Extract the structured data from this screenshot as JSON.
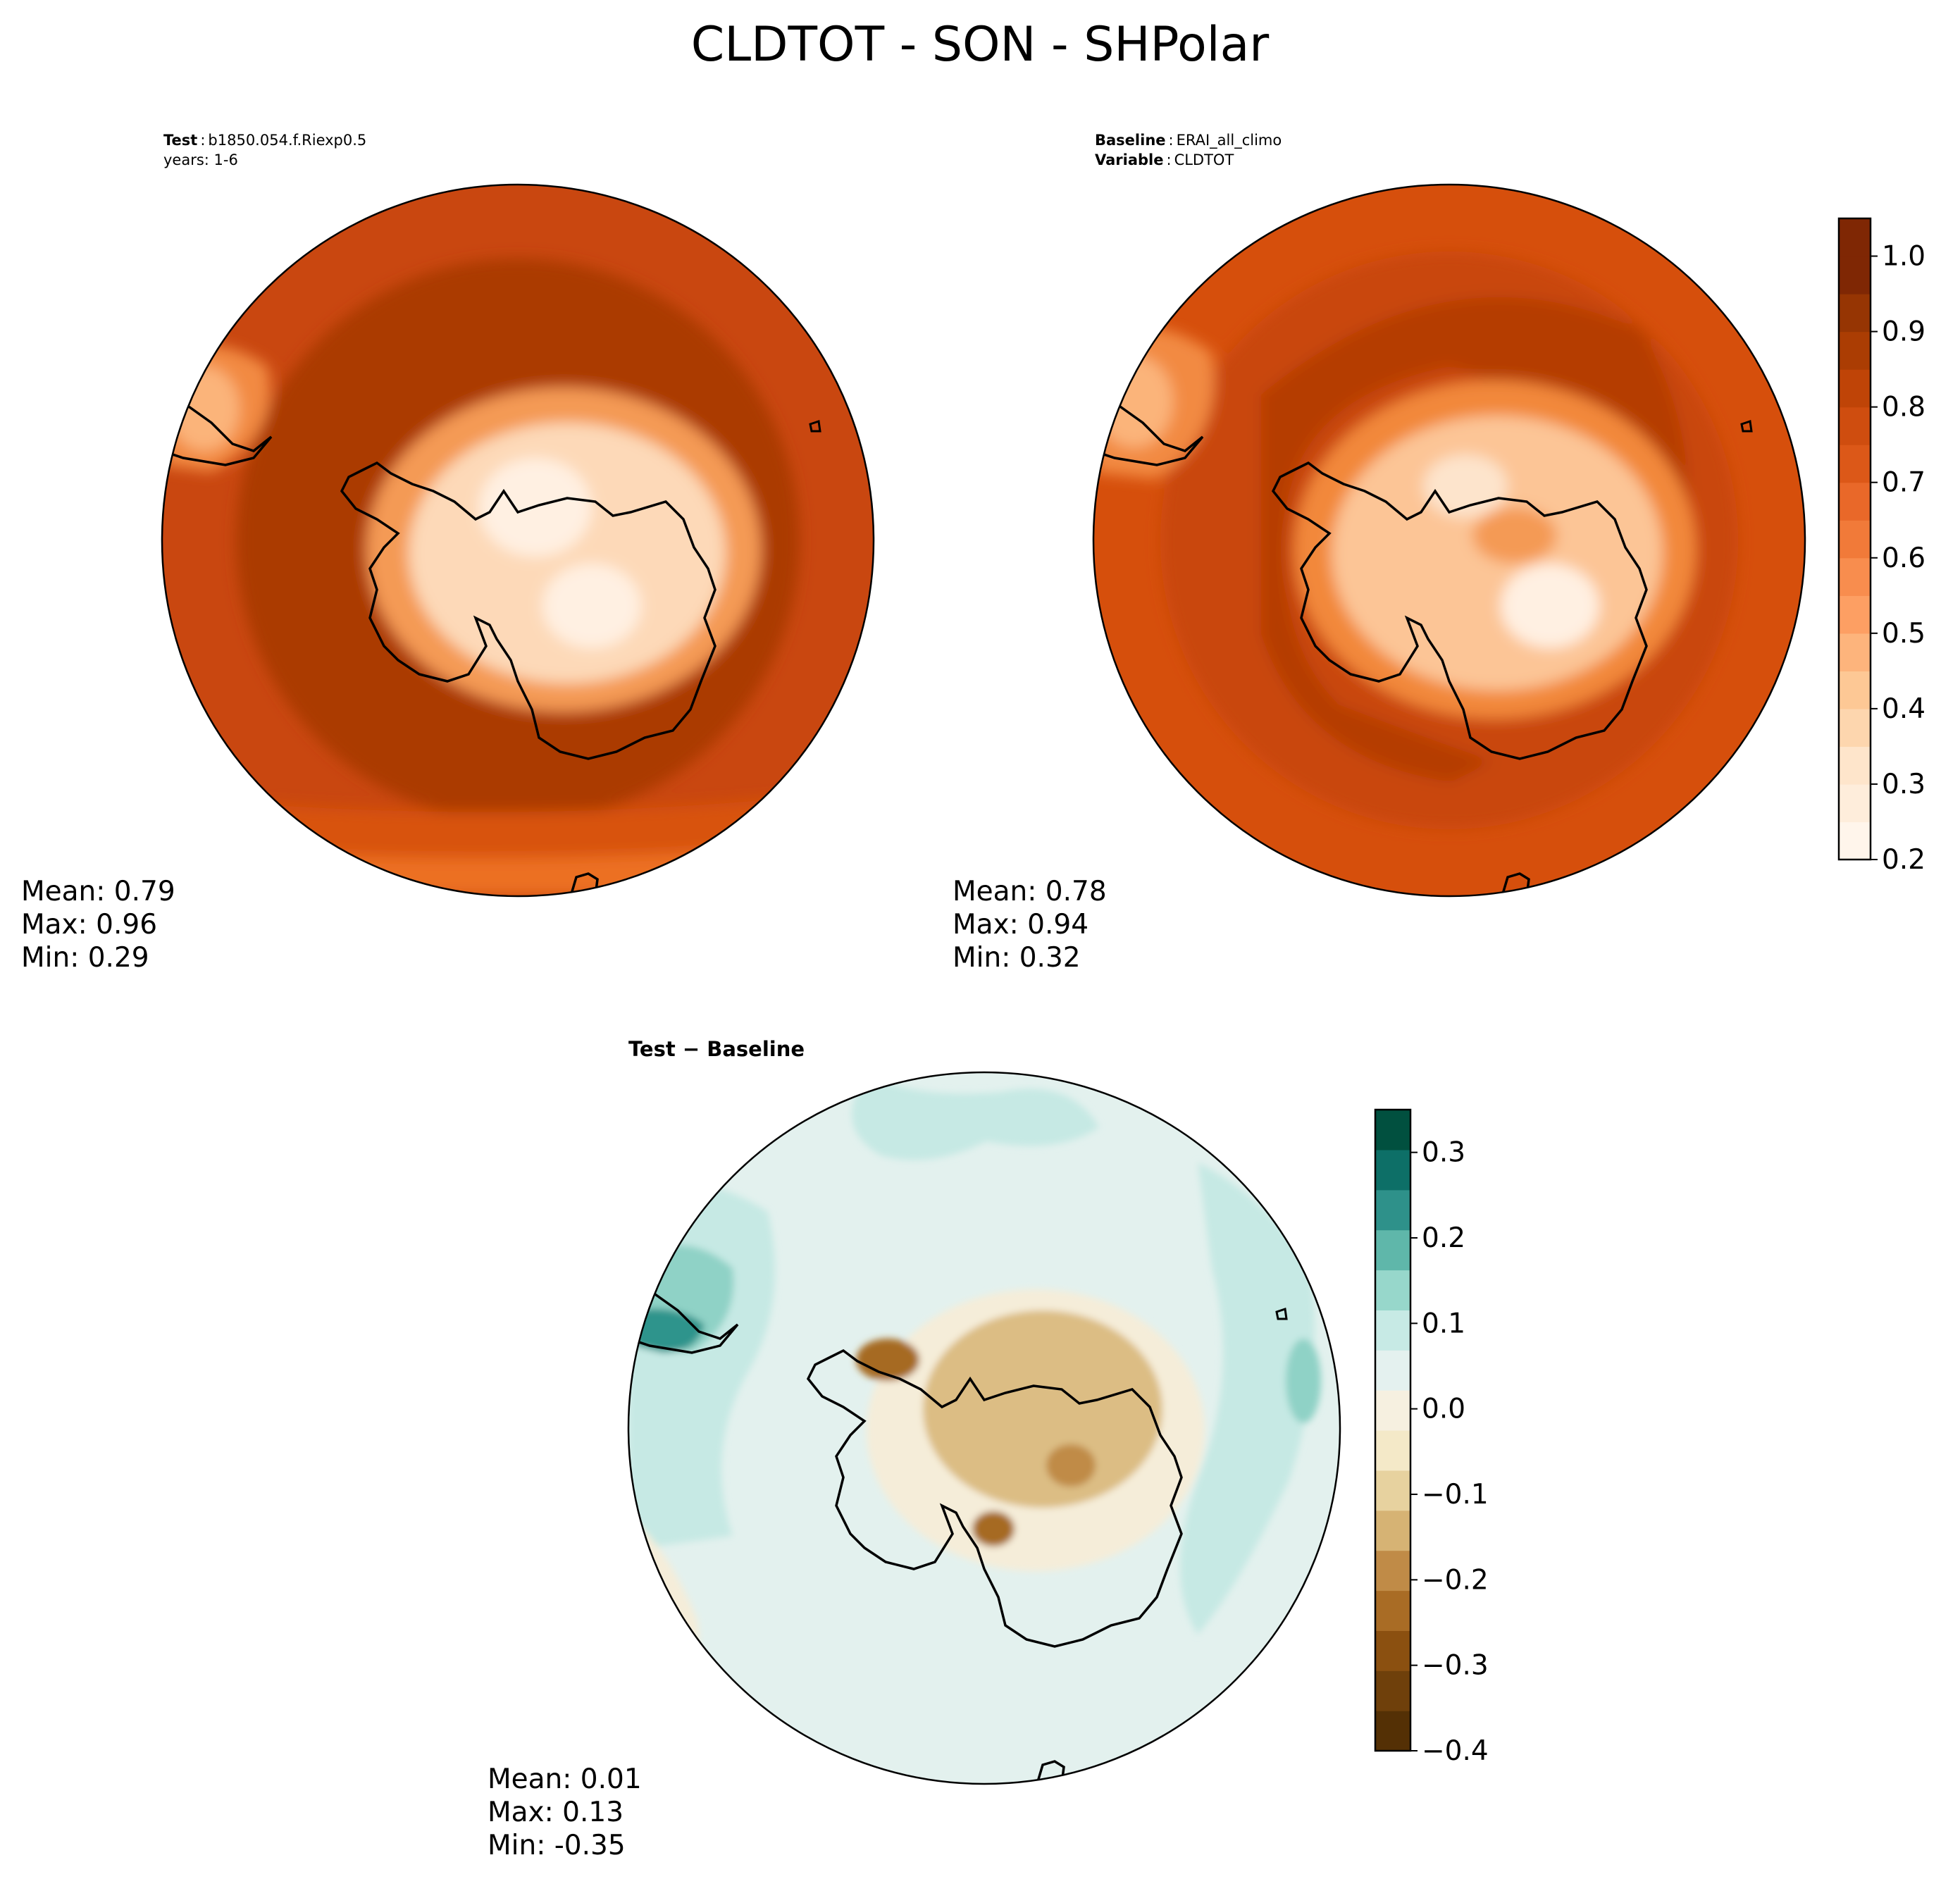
{
  "figure": {
    "title": "CLDTOT - SON - SHPolar"
  },
  "panels": {
    "test": {
      "label_bold": "Test",
      "label_sep": ":",
      "case": "b1850.054.f.Riexp0.5",
      "line2": "years: 1-6",
      "stats": {
        "mean": "Mean:  0.79",
        "max": "Max:  0.96",
        "min": "Min:  0.29"
      },
      "colors": {
        "ocean": "#c94710",
        "ocean_dark": "#ab3a03",
        "ocean_mid": "#d85210",
        "ocean_light": "#ec6f20",
        "ice": "#fdd9b8",
        "ice_light": "#fff0e2",
        "ice_edge": "#f49a55"
      }
    },
    "baseline": {
      "label1_bold": "Baseline",
      "label1_sep": ":",
      "case": "ERAI_all_climo",
      "label2_bold": "Variable",
      "label2_sep": ":",
      "variable": "CLDTOT",
      "stats": {
        "mean": "Mean:  0.78",
        "max": "Max:  0.94",
        "min": "Min:  0.32"
      },
      "colors": {
        "ocean": "#d64f0c",
        "ocean_dark": "#b53e04",
        "ocean_mid": "#c94710",
        "ocean_light": "#ee7326",
        "ice": "#fcc596",
        "ice_light": "#fff0e2",
        "ice_edge": "#f2883b"
      }
    },
    "difference": {
      "title": "Test − Baseline",
      "stats": {
        "mean": "Mean:  0.01",
        "max": "Max:  0.13",
        "min": "Min: -0.35"
      },
      "colors": {
        "base": "#e3f1ee",
        "teal_light": "#c6e9e4",
        "teal_mid": "#8fd2c6",
        "teal_dark": "#2e948c",
        "brown_light": "#f5edd9",
        "brown_mid": "#dcbd84",
        "brown_dark": "#a66a24"
      }
    }
  },
  "colorbars": {
    "main": {
      "ticks": [
        "0.2",
        "0.3",
        "0.4",
        "0.5",
        "0.6",
        "0.7",
        "0.8",
        "0.9",
        "1.0"
      ],
      "tick_values": [
        0.2,
        0.3,
        0.4,
        0.5,
        0.6,
        0.7,
        0.8,
        0.9,
        1.0
      ],
      "range": [
        0.2,
        1.05
      ],
      "colors": [
        "#fff5eb",
        "#feeddb",
        "#fee5cb",
        "#fdd6ae",
        "#fdc895",
        "#fdb47c",
        "#fd9f63",
        "#f88d4e",
        "#f17a39",
        "#e96829",
        "#dc5818",
        "#cf4d0f",
        "#bf4407",
        "#ab3d03",
        "#963503",
        "#7f2704",
        "#7f2704"
      ]
    },
    "diff": {
      "ticks": [
        "0.3",
        "0.2",
        "0.1",
        "0.0",
        "−0.1",
        "−0.2",
        "−0.3",
        "−0.4"
      ],
      "tick_values": [
        0.3,
        0.2,
        0.1,
        0.0,
        -0.1,
        -0.2,
        -0.3,
        -0.4
      ],
      "range": [
        -0.4,
        0.35
      ],
      "colors": [
        "#543005",
        "#6f400b",
        "#8b5010",
        "#a96c25",
        "#c08b47",
        "#d6b374",
        "#e7d29f",
        "#f4e9c8",
        "#f6f0e0",
        "#e4f1ef",
        "#c7eae5",
        "#97d7cb",
        "#5fb7aa",
        "#2e918a",
        "#0d6f67",
        "#01503f"
      ]
    }
  }
}
